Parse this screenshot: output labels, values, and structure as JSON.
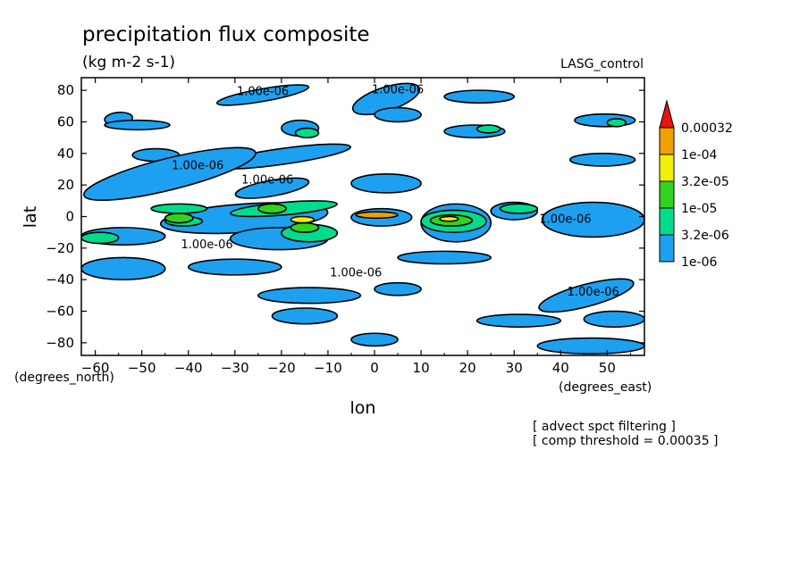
{
  "title": "precipitation flux composite",
  "units": "(kg m-2 s-1)",
  "model_label": "LASG_control",
  "notes": [
    "[ advect spct filtering ]",
    "[ comp threshold = 0.00035 ]"
  ],
  "chart_data": {
    "type": "heatmap",
    "title": "precipitation flux composite",
    "xlabel": "lon",
    "ylabel": "lat",
    "x_units_label": "(degrees_east)",
    "y_units_label": "(degrees_north)",
    "xlim": [
      -63,
      58
    ],
    "ylim": [
      -88,
      88
    ],
    "x_ticks": [
      -60,
      -50,
      -40,
      -30,
      -20,
      -10,
      0,
      10,
      20,
      30,
      40,
      50
    ],
    "x_tick_labels": [
      "−60",
      "−50",
      "−40",
      "−30",
      "−20",
      "−10",
      "0",
      "10",
      "20",
      "30",
      "40",
      "50"
    ],
    "y_ticks": [
      80,
      60,
      40,
      20,
      0,
      -20,
      -40,
      -60,
      -80
    ],
    "y_tick_labels": [
      "80",
      "60",
      "40",
      "20",
      "0",
      "−20",
      "−40",
      "−60",
      "−80"
    ],
    "grid": false,
    "colorbar": {
      "levels": [
        "1e-06",
        "3.2e-06",
        "1e-05",
        "3.2e-05",
        "1e-04",
        "0.00032"
      ],
      "colors": [
        "#1ea0f0",
        "#00dc8c",
        "#32d21e",
        "#f0f000",
        "#f0a000",
        "#e61414"
      ]
    },
    "contour_labels": [
      {
        "text": "1.00e-06",
        "lon": -24,
        "lat": 77
      },
      {
        "text": "1.00e-06",
        "lon": 5,
        "lat": 78
      },
      {
        "text": "1.00e-06",
        "lon": -38,
        "lat": 30
      },
      {
        "text": "1.00e-06",
        "lon": -23,
        "lat": 21
      },
      {
        "text": "1.00e-06",
        "lon": -36,
        "lat": -20
      },
      {
        "text": "1.00e-06",
        "lon": -4,
        "lat": -38
      },
      {
        "text": "1.00e-06",
        "lon": 41,
        "lat": -4
      },
      {
        "text": "1.00e-06",
        "lon": 47,
        "lat": -50
      }
    ],
    "regions": [
      {
        "level": 1,
        "lon": [
          -58,
          -52
        ],
        "lat": [
          58,
          66
        ],
        "angle": -5
      },
      {
        "level": 1,
        "lon": [
          -34,
          -14
        ],
        "lat": [
          73,
          81
        ],
        "angle": -10
      },
      {
        "level": 1,
        "lon": [
          -5,
          10
        ],
        "lat": [
          67,
          82
        ],
        "angle": -18
      },
      {
        "level": 1,
        "lon": [
          15,
          30
        ],
        "lat": [
          72,
          80
        ],
        "angle": 0
      },
      {
        "level": 1,
        "lon": [
          43,
          56
        ],
        "lat": [
          57,
          65
        ],
        "angle": 0
      },
      {
        "level": 1,
        "lon": [
          -58,
          -44
        ],
        "lat": [
          55,
          61
        ],
        "angle": 0
      },
      {
        "level": 1,
        "lon": [
          -20,
          -12
        ],
        "lat": [
          51,
          61
        ],
        "angle": 0
      },
      {
        "level": 1,
        "lon": [
          0,
          10
        ],
        "lat": [
          60,
          69
        ],
        "angle": 0
      },
      {
        "level": 1,
        "lon": [
          15,
          28
        ],
        "lat": [
          50,
          58
        ],
        "angle": 0
      },
      {
        "level": 1,
        "lon": [
          -52,
          -42
        ],
        "lat": [
          35,
          43
        ],
        "angle": 0
      },
      {
        "level": 1,
        "lon": [
          -35,
          -5
        ],
        "lat": [
          33,
          43
        ],
        "angle": -8
      },
      {
        "level": 1,
        "lon": [
          42,
          56
        ],
        "lat": [
          32,
          40
        ],
        "angle": 0
      },
      {
        "level": 1,
        "lon": [
          -63,
          -25
        ],
        "lat": [
          17,
          37
        ],
        "angle": -14
      },
      {
        "level": 1,
        "lon": [
          -30,
          -14
        ],
        "lat": [
          13,
          23
        ],
        "angle": -10
      },
      {
        "level": 1,
        "lon": [
          -5,
          10
        ],
        "lat": [
          15,
          27
        ],
        "angle": 0
      },
      {
        "level": 1,
        "lon": [
          -46,
          -10
        ],
        "lat": [
          -10,
          8
        ],
        "angle": -4
      },
      {
        "level": 1,
        "lon": [
          -5,
          8
        ],
        "lat": [
          -6,
          5
        ],
        "angle": 0
      },
      {
        "level": 1,
        "lon": [
          10,
          25
        ],
        "lat": [
          -16,
          8
        ],
        "angle": 0
      },
      {
        "level": 1,
        "lon": [
          25,
          35
        ],
        "lat": [
          -2,
          9
        ],
        "angle": 0
      },
      {
        "level": 1,
        "lon": [
          36,
          58
        ],
        "lat": [
          -13,
          9
        ],
        "angle": 0
      },
      {
        "level": 1,
        "lon": [
          -63,
          -45
        ],
        "lat": [
          -18,
          -7
        ],
        "angle": 0
      },
      {
        "level": 1,
        "lon": [
          -31,
          -10
        ],
        "lat": [
          -21,
          -7
        ],
        "angle": 0
      },
      {
        "level": 1,
        "lon": [
          -63,
          -45
        ],
        "lat": [
          -40,
          -26
        ],
        "angle": 0
      },
      {
        "level": 1,
        "lon": [
          -40,
          -20
        ],
        "lat": [
          -37,
          -27
        ],
        "angle": 0
      },
      {
        "level": 1,
        "lon": [
          5,
          25
        ],
        "lat": [
          -30,
          -22
        ],
        "angle": 0
      },
      {
        "level": 1,
        "lon": [
          -25,
          -3
        ],
        "lat": [
          -55,
          -45
        ],
        "angle": 0
      },
      {
        "level": 1,
        "lon": [
          0,
          10
        ],
        "lat": [
          -50,
          -42
        ],
        "angle": 0
      },
      {
        "level": 1,
        "lon": [
          35,
          56
        ],
        "lat": [
          -57,
          -43
        ],
        "angle": -15
      },
      {
        "level": 1,
        "lon": [
          -22,
          -8
        ],
        "lat": [
          -68,
          -58
        ],
        "angle": 0
      },
      {
        "level": 1,
        "lon": [
          22,
          40
        ],
        "lat": [
          -70,
          -62
        ],
        "angle": 0
      },
      {
        "level": 1,
        "lon": [
          45,
          58
        ],
        "lat": [
          -70,
          -60
        ],
        "angle": 0
      },
      {
        "level": 1,
        "lon": [
          -5,
          5
        ],
        "lat": [
          -82,
          -74
        ],
        "angle": 0
      },
      {
        "level": 1,
        "lon": [
          35,
          58
        ],
        "lat": [
          -87,
          -77
        ],
        "angle": 0
      },
      {
        "level": 2,
        "lon": [
          -48,
          -36
        ],
        "lat": [
          2,
          8
        ],
        "angle": 0
      },
      {
        "level": 2,
        "lon": [
          -31,
          -8
        ],
        "lat": [
          1,
          9
        ],
        "angle": -5
      },
      {
        "level": 2,
        "lon": [
          -45,
          -37
        ],
        "lat": [
          -6,
          0
        ],
        "angle": 0
      },
      {
        "level": 2,
        "lon": [
          -20,
          -8
        ],
        "lat": [
          -16,
          -5
        ],
        "angle": 0
      },
      {
        "level": 2,
        "lon": [
          -63,
          -55
        ],
        "lat": [
          -17,
          -10
        ],
        "angle": 0
      },
      {
        "level": 2,
        "lon": [
          10,
          24
        ],
        "lat": [
          -10,
          4
        ],
        "angle": 0
      },
      {
        "level": 2,
        "lon": [
          27,
          35
        ],
        "lat": [
          2,
          8
        ],
        "angle": 0
      },
      {
        "level": 2,
        "lon": [
          -17,
          -12
        ],
        "lat": [
          50,
          56
        ],
        "angle": 0
      },
      {
        "level": 2,
        "lon": [
          22,
          27
        ],
        "lat": [
          53,
          58
        ],
        "angle": 0
      },
      {
        "level": 2,
        "lon": [
          50,
          54
        ],
        "lat": [
          57,
          62
        ],
        "angle": 0
      },
      {
        "level": 3,
        "lon": [
          -25,
          -19
        ],
        "lat": [
          2,
          8
        ],
        "angle": 0
      },
      {
        "level": 3,
        "lon": [
          -45,
          -39
        ],
        "lat": [
          -4,
          2
        ],
        "angle": 0
      },
      {
        "level": 3,
        "lon": [
          -18,
          -12
        ],
        "lat": [
          -10,
          -4
        ],
        "angle": 0
      },
      {
        "level": 3,
        "lon": [
          12,
          21
        ],
        "lat": [
          -6,
          1
        ],
        "angle": 0
      },
      {
        "level": 4,
        "lon": [
          -18,
          -13
        ],
        "lat": [
          -4,
          0
        ],
        "angle": 0
      },
      {
        "level": 4,
        "lon": [
          14,
          18
        ],
        "lat": [
          -3,
          0
        ],
        "angle": 0
      },
      {
        "level": 5,
        "lon": [
          -4,
          5
        ],
        "lat": [
          -1,
          3
        ],
        "angle": 0
      }
    ]
  }
}
